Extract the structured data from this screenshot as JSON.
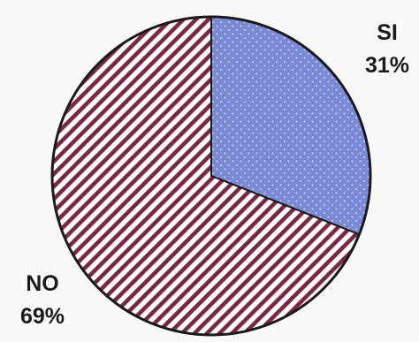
{
  "chart_data": {
    "type": "pie",
    "title": "",
    "slices": [
      {
        "label": "SI",
        "value": 31,
        "value_label": "31%",
        "color": "#7b8ad6",
        "pattern": "dotted"
      },
      {
        "label": "NO",
        "value": 69,
        "value_label": "69%",
        "color": "#7a2740",
        "pattern": "diagonal-stripes"
      }
    ],
    "legend": "none"
  }
}
